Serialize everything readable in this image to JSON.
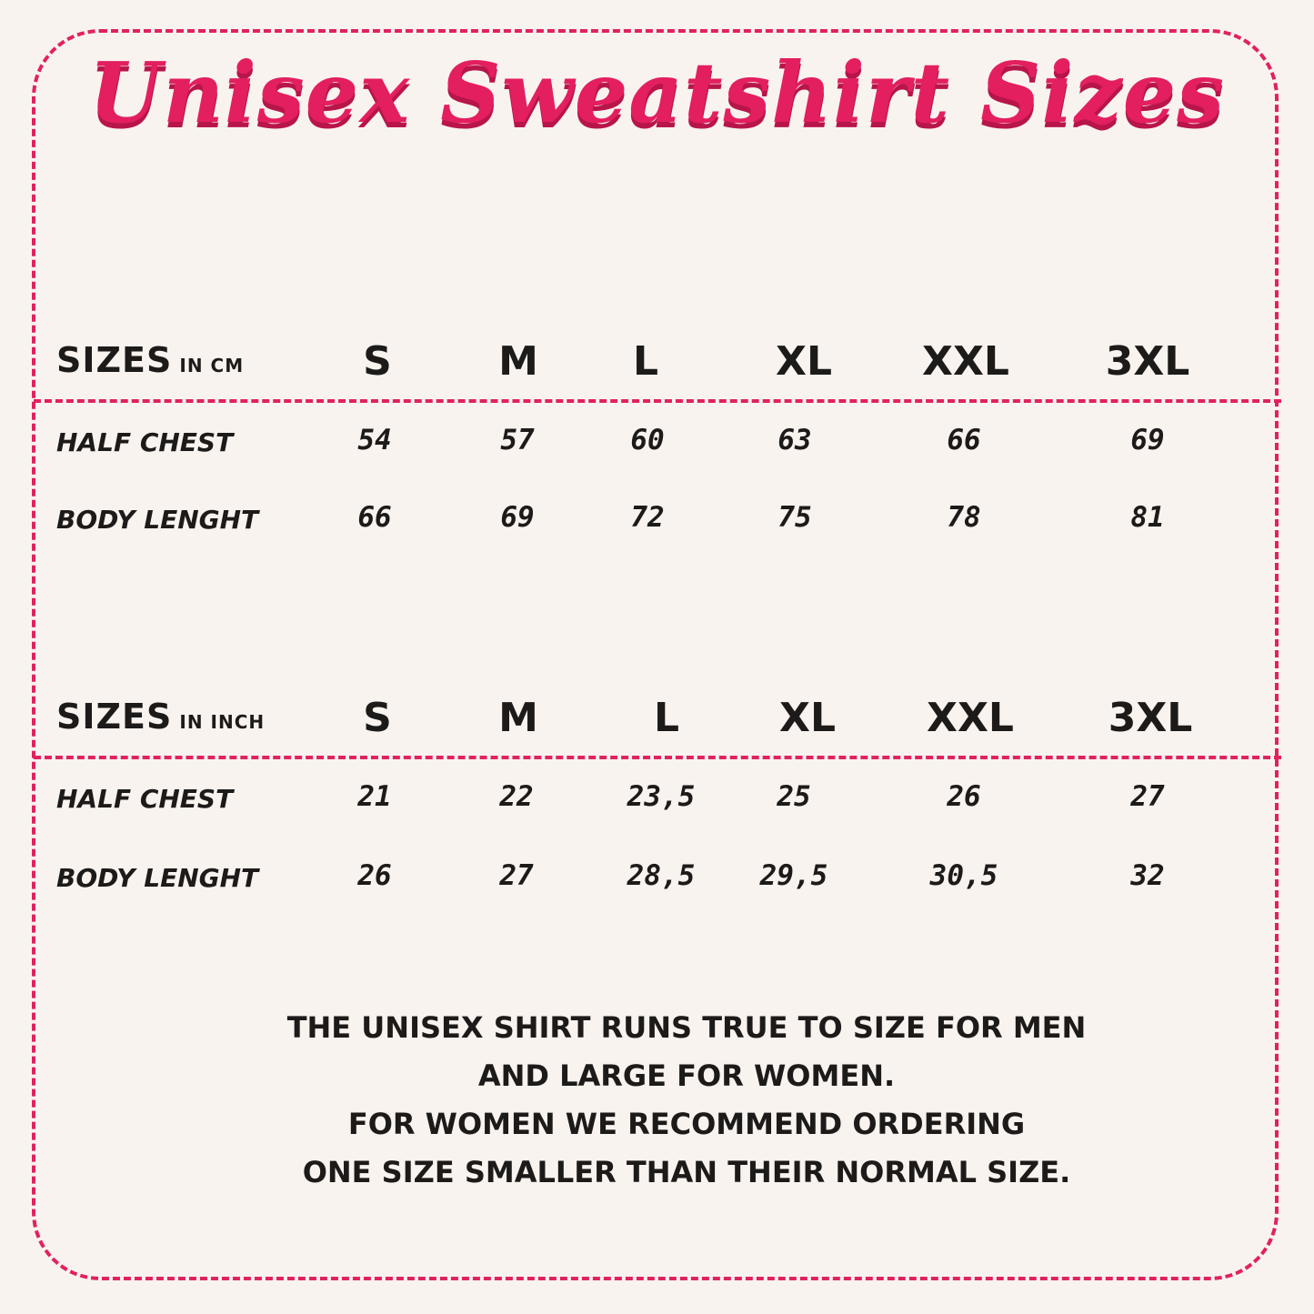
{
  "title": "Unisex Sweatshirt Sizes",
  "accent_color": "#e0225f",
  "tables": [
    {
      "header_label": "SIZES",
      "unit": "IN CM",
      "sizes": [
        "S",
        "M",
        "L",
        "XL",
        "XXL",
        "3XL"
      ],
      "rows": [
        {
          "label": "HALF CHEST",
          "values": [
            "54",
            "57",
            "60",
            "63",
            "66",
            "69"
          ]
        },
        {
          "label": "BODY LENGHT",
          "values": [
            "66",
            "69",
            "72",
            "75",
            "78",
            "81"
          ]
        }
      ]
    },
    {
      "header_label": "SIZES",
      "unit": "IN INCH",
      "sizes": [
        "S",
        "M",
        "L",
        "XL",
        "XXL",
        "3XL"
      ],
      "rows": [
        {
          "label": "HALF CHEST",
          "values": [
            "21",
            "22",
            "23,5",
            "25",
            "26",
            "27"
          ]
        },
        {
          "label": "BODY LENGHT",
          "values": [
            "26",
            "27",
            "28,5",
            "29,5",
            "30,5",
            "32"
          ]
        }
      ]
    }
  ],
  "note_lines": [
    "THE UNISEX SHIRT RUNS TRUE TO SIZE FOR MEN",
    "AND LARGE FOR WOMEN.",
    "FOR WOMEN WE RECOMMEND ORDERING",
    "ONE SIZE SMALLER THAN THEIR NORMAL SIZE."
  ]
}
